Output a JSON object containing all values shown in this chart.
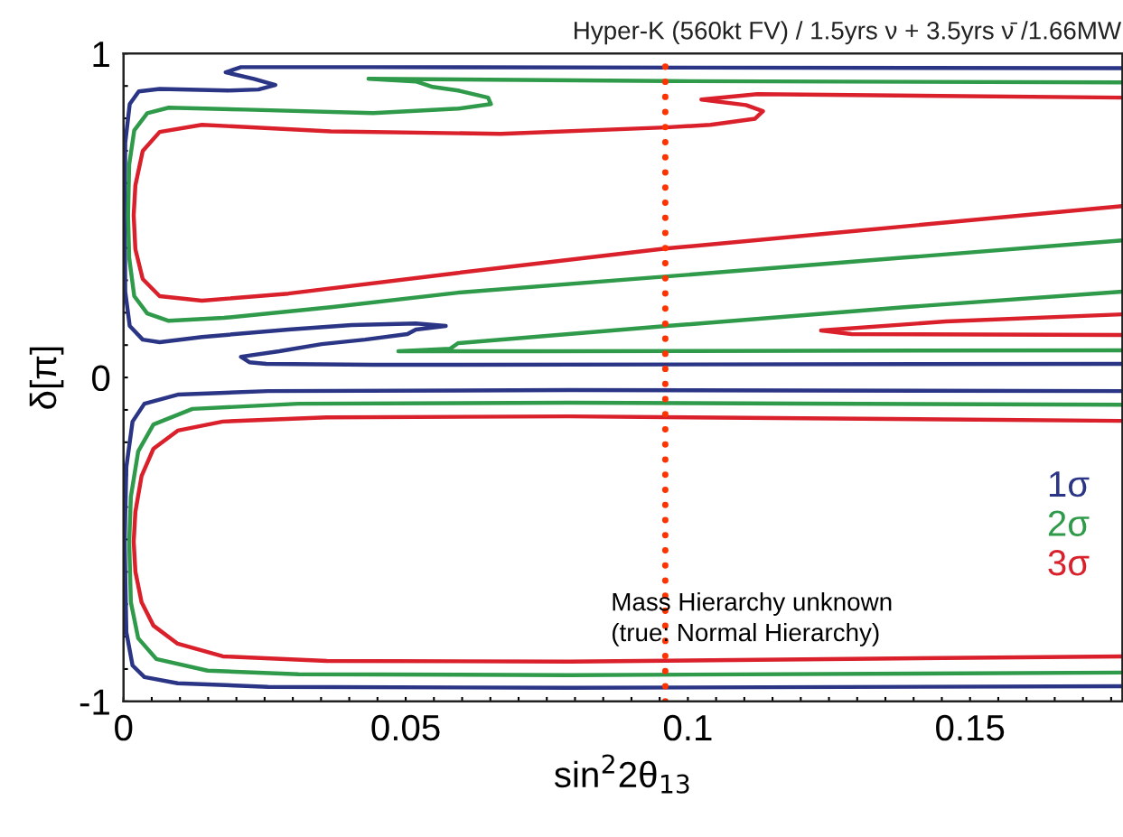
{
  "chart_data": {
    "type": "line",
    "title": "Hyper-K (560kt FV) / 1.5yrs ν + 3.5yrs ν̄ /1.66MW",
    "xlabel": "sin$^{2}$2θ$_{13}$",
    "ylabel": "δ[π]",
    "xlim": [
      0,
      0.177
    ],
    "ylim": [
      -1,
      1
    ],
    "xticks": [
      0,
      {
        "value": 0.005,
        "label": null
      },
      {
        "value": 0.01,
        "label": null
      },
      {
        "value": 0.015,
        "label": null
      },
      {
        "value": 0.02,
        "label": null
      },
      {
        "value": 0.025,
        "label": null
      },
      {
        "value": 0.03,
        "label": null
      },
      {
        "value": 0.035,
        "label": null
      },
      {
        "value": 0.04,
        "label": null
      },
      {
        "value": 0.045,
        "label": null
      },
      0.05,
      {
        "value": 0.055,
        "label": null
      },
      {
        "value": 0.06,
        "label": null
      },
      {
        "value": 0.065,
        "label": null
      },
      {
        "value": 0.07,
        "label": null
      },
      {
        "value": 0.075,
        "label": null
      },
      {
        "value": 0.08,
        "label": null
      },
      {
        "value": 0.085,
        "label": null
      },
      {
        "value": 0.09,
        "label": null
      },
      {
        "value": 0.095,
        "label": null
      },
      0.1,
      {
        "value": 0.105,
        "label": null
      },
      {
        "value": 0.11,
        "label": null
      },
      {
        "value": 0.115,
        "label": null
      },
      {
        "value": 0.12,
        "label": null
      },
      {
        "value": 0.125,
        "label": null
      },
      {
        "value": 0.13,
        "label": null
      },
      {
        "value": 0.135,
        "label": null
      },
      {
        "value": 0.14,
        "label": null
      },
      {
        "value": 0.145,
        "label": null
      },
      0.15,
      {
        "value": 0.155,
        "label": null
      },
      {
        "value": 0.16,
        "label": null
      },
      {
        "value": 0.165,
        "label": null
      },
      {
        "value": 0.17,
        "label": null
      },
      {
        "value": 0.175,
        "label": null
      }
    ],
    "yticks": [
      -1,
      {
        "value": -0.9,
        "label": null
      },
      {
        "value": -0.8,
        "label": null
      },
      {
        "value": -0.7,
        "label": null
      },
      {
        "value": -0.6,
        "label": null
      },
      {
        "value": -0.5,
        "label": null
      },
      {
        "value": -0.4,
        "label": null
      },
      {
        "value": -0.3,
        "label": null
      },
      {
        "value": -0.2,
        "label": null
      },
      {
        "value": -0.1,
        "label": null
      },
      0,
      {
        "value": 0.1,
        "label": null
      },
      {
        "value": 0.2,
        "label": null
      },
      {
        "value": 0.3,
        "label": null
      },
      {
        "value": 0.4,
        "label": null
      },
      {
        "value": 0.5,
        "label": null
      },
      {
        "value": 0.6,
        "label": null
      },
      {
        "value": 0.7,
        "label": null
      },
      {
        "value": 0.8,
        "label": null
      },
      {
        "value": 0.9,
        "label": null
      },
      1
    ],
    "grid": false,
    "marker": "none",
    "line_style": "solid",
    "legend": "right",
    "series": [
      {
        "name": "1σ",
        "color": "#2b3585",
        "x": [
          0.177,
          0.079,
          0.0256,
          0.0096,
          0.0037,
          0.0016,
          0.0005,
          0.0002,
          0.0005,
          0.0016,
          0.0037,
          0.0096,
          0.0256,
          0.079,
          0.177
        ],
        "values": [
          -0.042,
          -0.039,
          -0.042,
          -0.053,
          -0.081,
          -0.136,
          -0.276,
          -0.507,
          -0.786,
          -0.889,
          -0.925,
          -0.944,
          -0.955,
          -0.958,
          -0.953
        ]
      },
      {
        "name": "2σ",
        "color": "#2e9a4a",
        "x": [
          0.177,
          0.079,
          0.031,
          0.0122,
          0.0053,
          0.0026,
          0.0013,
          0.001,
          0.0013,
          0.0026,
          0.0058,
          0.0149,
          0.031,
          0.079,
          0.177
        ],
        "values": [
          -0.084,
          -0.078,
          -0.081,
          -0.097,
          -0.145,
          -0.228,
          -0.368,
          -0.507,
          -0.694,
          -0.805,
          -0.869,
          -0.905,
          -0.916,
          -0.919,
          -0.911
        ]
      },
      {
        "name": "3σ",
        "color": "#d9202b",
        "x": [
          0.177,
          0.079,
          0.036,
          0.0176,
          0.0096,
          0.0053,
          0.0032,
          0.0021,
          0.0018,
          0.0021,
          0.0032,
          0.0053,
          0.0096,
          0.0176,
          0.036,
          0.079,
          0.177
        ],
        "values": [
          -0.134,
          -0.12,
          -0.123,
          -0.136,
          -0.164,
          -0.22,
          -0.304,
          -0.415,
          -0.507,
          -0.599,
          -0.694,
          -0.766,
          -0.822,
          -0.861,
          -0.875,
          -0.877,
          -0.861
        ]
      },
      {
        "color": "#2b3585",
        "x": [
          0.177,
          0.044,
          0.0208,
          0.0181,
          0.0231,
          0.0269,
          0.0239,
          0.0186,
          0.0064,
          0.0027,
          0.0011,
          0.0003,
          0.0002,
          0.0003,
          0.0011,
          0.0034,
          0.0064,
          0.0139,
          0.0292,
          0.0404,
          0.0518,
          0.0571,
          0.0518,
          0.0503,
          0.0428,
          0.0351,
          0.0276,
          0.0208,
          0.0223,
          0.0253,
          0.0442,
          0.177
        ],
        "values": [
          0.955,
          0.958,
          0.958,
          0.942,
          0.922,
          0.903,
          0.889,
          0.886,
          0.891,
          0.883,
          0.844,
          0.724,
          0.501,
          0.265,
          0.159,
          0.117,
          0.109,
          0.125,
          0.148,
          0.162,
          0.167,
          0.159,
          0.148,
          0.134,
          0.117,
          0.103,
          0.081,
          0.064,
          0.047,
          0.042,
          0.039,
          0.042
        ]
      },
      {
        "color": "#2e9a4a",
        "x": [
          0.177,
          0.0963,
          0.0434,
          0.0518,
          0.0548,
          0.0593,
          0.0646,
          0.0651,
          0.0593,
          0.0442,
          0.0216,
          0.008,
          0.0042,
          0.0019,
          0.001,
          0.0008,
          0.001,
          0.0019,
          0.0042,
          0.008,
          0.0178,
          0.0367,
          0.0593,
          0.0963,
          0.1383,
          0.177
        ],
        "values": [
          0.911,
          0.915,
          0.922,
          0.914,
          0.897,
          0.886,
          0.864,
          0.844,
          0.83,
          0.816,
          0.827,
          0.833,
          0.816,
          0.763,
          0.657,
          0.501,
          0.37,
          0.251,
          0.198,
          0.175,
          0.184,
          0.217,
          0.262,
          0.312,
          0.37,
          0.423
        ]
      },
      {
        "color": "#2e9a4a",
        "x": [
          0.177,
          0.1383,
          0.0963,
          0.0593,
          0.0579,
          0.0487,
          0.0742,
          0.177
        ],
        "values": [
          0.265,
          0.217,
          0.159,
          0.106,
          0.089,
          0.081,
          0.081,
          0.084
        ]
      },
      {
        "color": "#d9202b",
        "x": [
          0.177,
          0.1123,
          0.1024,
          0.1103,
          0.1133,
          0.1119,
          0.104,
          0.096,
          0.0668,
          0.0367,
          0.0139,
          0.0064,
          0.0034,
          0.0021,
          0.0018,
          0.0021,
          0.0034,
          0.0064,
          0.0139,
          0.0292,
          0.0593,
          0.096,
          0.177
        ],
        "values": [
          0.864,
          0.875,
          0.858,
          0.841,
          0.822,
          0.799,
          0.78,
          0.772,
          0.752,
          0.76,
          0.78,
          0.758,
          0.699,
          0.593,
          0.501,
          0.396,
          0.304,
          0.251,
          0.237,
          0.259,
          0.323,
          0.398,
          0.529
        ]
      },
      {
        "color": "#d9202b",
        "x": [
          0.177,
          0.1457,
          0.1236,
          0.129,
          0.177
        ],
        "values": [
          0.195,
          0.173,
          0.145,
          0.134,
          0.131
        ]
      }
    ],
    "ref_lines": [
      {
        "axis": "x",
        "value": 0.096,
        "color": "#ff3300",
        "line_style": "dotted"
      }
    ],
    "annotations": [
      "Mass Hierarchy unknown\n(true: Normal Hierarchy)"
    ]
  }
}
